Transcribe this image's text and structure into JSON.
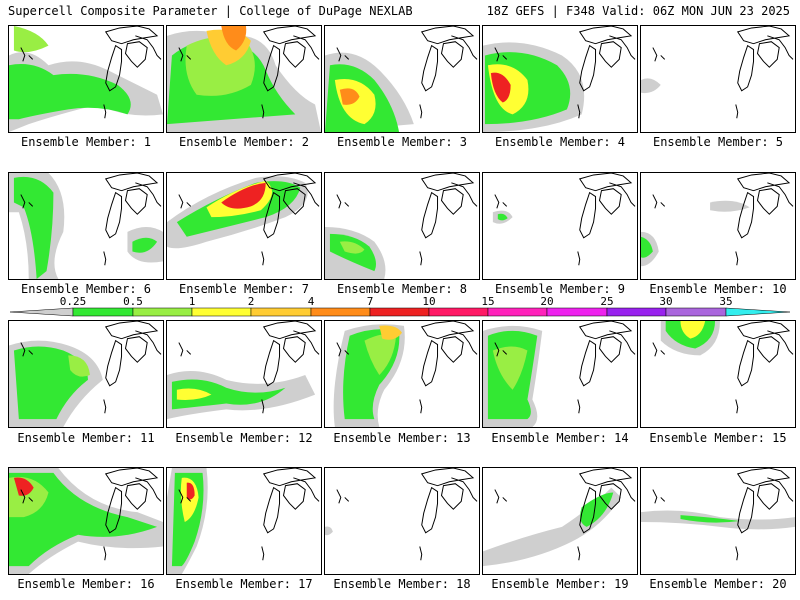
{
  "header": {
    "left": "Supercell Composite Parameter | College of DuPage NEXLAB",
    "right": "18Z GEFS | F348 Valid: 06Z MON JUN 23 2025"
  },
  "colorbar": {
    "levels": [
      "0.25",
      "0.5",
      "1",
      "2",
      "4",
      "7",
      "10",
      "15",
      "20",
      "25",
      "30",
      "35"
    ],
    "colors": [
      "#cfcfcf",
      "#33e833",
      "#99ee44",
      "#ffff33",
      "#ffcc33",
      "#ff8c1a",
      "#ee2222",
      "#ff1a66",
      "#ff22bb",
      "#ee22ee",
      "#9922ee",
      "#aa66dd",
      "#33eeee"
    ]
  },
  "panels": [
    {
      "label": "Ensemble Member: 1"
    },
    {
      "label": "Ensemble Member: 2"
    },
    {
      "label": "Ensemble Member: 3"
    },
    {
      "label": "Ensemble Member: 4"
    },
    {
      "label": "Ensemble Member: 5"
    },
    {
      "label": "Ensemble Member: 6"
    },
    {
      "label": "Ensemble Member: 7"
    },
    {
      "label": "Ensemble Member: 8"
    },
    {
      "label": "Ensemble Member: 9"
    },
    {
      "label": "Ensemble Member: 10"
    },
    {
      "label": "Ensemble Member: 11"
    },
    {
      "label": "Ensemble Member: 12"
    },
    {
      "label": "Ensemble Member: 13"
    },
    {
      "label": "Ensemble Member: 14"
    },
    {
      "label": "Ensemble Member: 15"
    },
    {
      "label": "Ensemble Member: 16"
    },
    {
      "label": "Ensemble Member: 17"
    },
    {
      "label": "Ensemble Member: 18"
    },
    {
      "label": "Ensemble Member: 19"
    },
    {
      "label": "Ensemble Member: 20"
    }
  ]
}
